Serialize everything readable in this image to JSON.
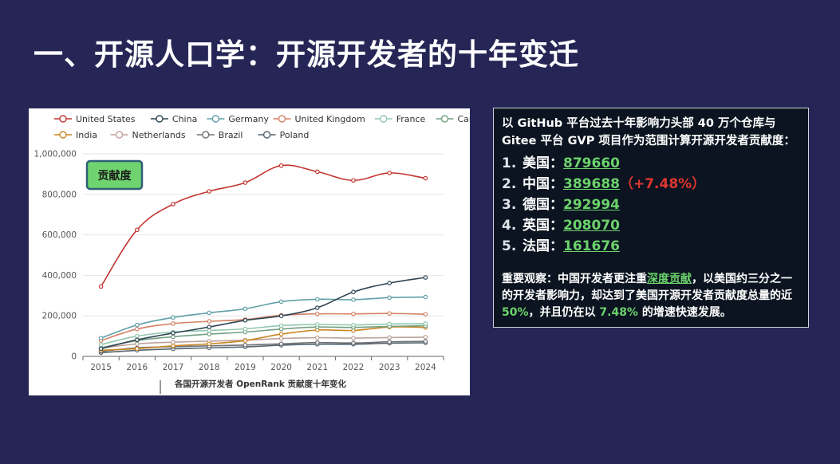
{
  "slide": {
    "title": "一、开源人口学：开源开发者的十年变迁"
  },
  "chart_data": {
    "type": "line",
    "title": "",
    "xlabel": "各国开源开发者 OpenRank 贡献度十年变化",
    "ylabel": "",
    "x": [
      "2015",
      "2016",
      "2017",
      "2018",
      "2019",
      "2020",
      "2021",
      "2022",
      "2023",
      "2024"
    ],
    "ylim": [
      0,
      1000000
    ],
    "yticks": [
      "0",
      "200,000",
      "400,000",
      "600,000",
      "800,000",
      "1,000,000"
    ],
    "grid": true,
    "legend_position": "top",
    "badge": "贡献度",
    "series": [
      {
        "name": "United States",
        "color": "#c23531",
        "values": [
          345000,
          625000,
          752000,
          815000,
          858000,
          942000,
          912000,
          869000,
          906000,
          879660
        ]
      },
      {
        "name": "China",
        "color": "#2f4554",
        "values": [
          38000,
          82000,
          115000,
          145000,
          178000,
          200000,
          240000,
          318000,
          362000,
          389688
        ]
      },
      {
        "name": "Germany",
        "color": "#61a0a8",
        "values": [
          90000,
          155000,
          192000,
          215000,
          235000,
          270000,
          282000,
          280000,
          290000,
          292994
        ]
      },
      {
        "name": "United Kingdom",
        "color": "#d48265",
        "values": [
          78000,
          135000,
          162000,
          173000,
          182000,
          203000,
          210000,
          210000,
          212000,
          208070
        ]
      },
      {
        "name": "France",
        "color": "#91c7ae",
        "values": [
          58000,
          100000,
          120000,
          128000,
          136000,
          152000,
          158000,
          155000,
          160000,
          161676
        ]
      },
      {
        "name": "Canada",
        "color": "#749f83",
        "values": [
          42000,
          78000,
          97000,
          110000,
          120000,
          135000,
          145000,
          143000,
          148000,
          151000
        ]
      },
      {
        "name": "India",
        "color": "#ca8622",
        "values": [
          30000,
          38000,
          52000,
          62000,
          78000,
          110000,
          130000,
          128000,
          145000,
          143000
        ]
      },
      {
        "name": "Netherlands",
        "color": "#bda29a",
        "values": [
          40000,
          62000,
          70000,
          75000,
          80000,
          88000,
          92000,
          90000,
          93000,
          95000
        ]
      },
      {
        "name": "Brazil",
        "color": "#6e7074",
        "values": [
          25000,
          42000,
          48000,
          52000,
          56000,
          62000,
          68000,
          66000,
          72000,
          74000
        ]
      },
      {
        "name": "Poland",
        "color": "#546570",
        "values": [
          18000,
          30000,
          37000,
          42000,
          47000,
          55000,
          60000,
          60000,
          65000,
          67000
        ]
      }
    ]
  },
  "info": {
    "intro": "以 GitHub 平台过去十年影响力头部 40 万个仓库与 Gitee 平台 GVP 项目作为范围计算开源开发者贡献度：",
    "ranking": [
      {
        "no": "1.",
        "country": "美国：",
        "value": "879660",
        "delta": ""
      },
      {
        "no": "2.",
        "country": "中国：",
        "value": "389688",
        "delta": "（+7.48%）"
      },
      {
        "no": "3.",
        "country": "德国：",
        "value": "292994",
        "delta": ""
      },
      {
        "no": "4.",
        "country": "英国：",
        "value": "208070",
        "delta": ""
      },
      {
        "no": "5.",
        "country": "法国：",
        "value": "161676",
        "delta": ""
      }
    ],
    "observation": {
      "p1": "重要观察：中国开发者更注重",
      "p2": "深度贡献",
      "p3": "，以美国约三分之一的开发者影响力，却达到了美国开源开发者贡献度总量的近 ",
      "p4": "50%",
      "p5": "，并且仍在以 ",
      "p6": "7.48%",
      "p7": " 的增速快速发展。"
    }
  }
}
